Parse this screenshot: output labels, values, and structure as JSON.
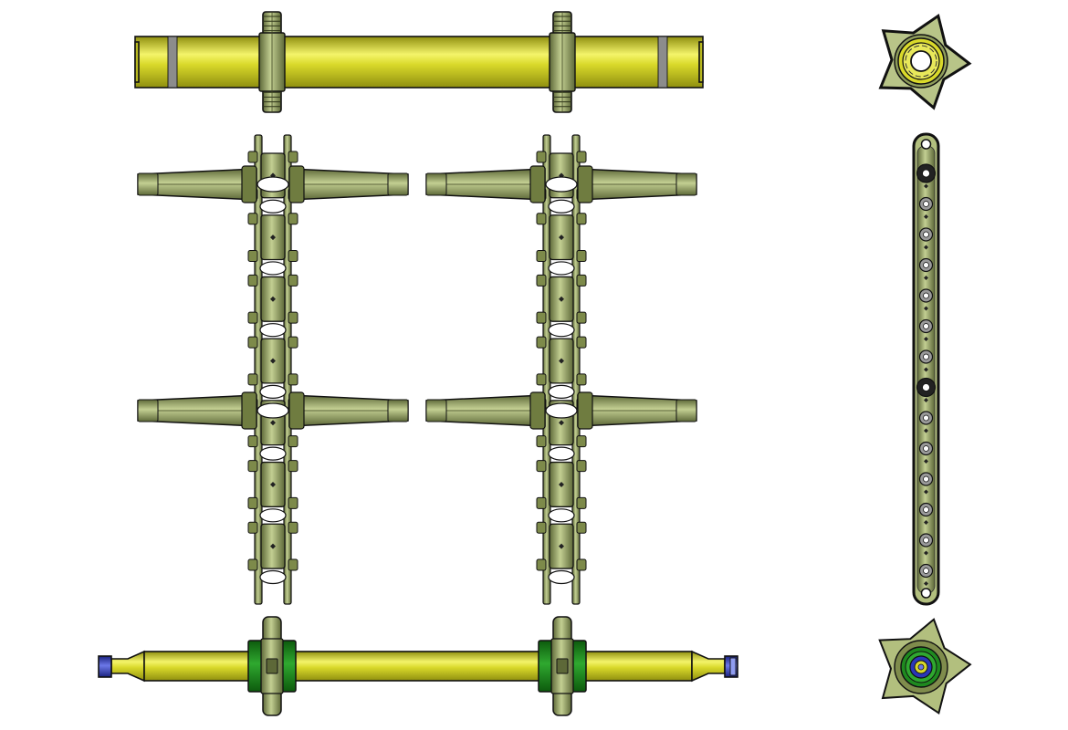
{
  "sheet": {
    "background": "#ffffff",
    "views": [
      {
        "name": "top-shaft-front-view"
      },
      {
        "name": "top-shaft-end-view"
      },
      {
        "name": "chain-assembly-front-view"
      },
      {
        "name": "chain-assembly-side-view"
      },
      {
        "name": "bottom-shaft-front-view"
      },
      {
        "name": "bottom-shaft-end-view"
      }
    ]
  },
  "colors": {
    "shaft_yellow": "#d9d92a",
    "shaft_highlight": "#f4f46a",
    "shaft_shadow": "#8f8f10",
    "olive": "#9aa869",
    "olive_light": "#c3cf92",
    "olive_dark": "#5d6838",
    "band_gray": "#8c8c8c",
    "hub_green": "#1f8a1f",
    "cap_blue": "#2a36b8",
    "outline": "#111111"
  },
  "chain_links_per_strand": 7,
  "flight_rows": 2
}
